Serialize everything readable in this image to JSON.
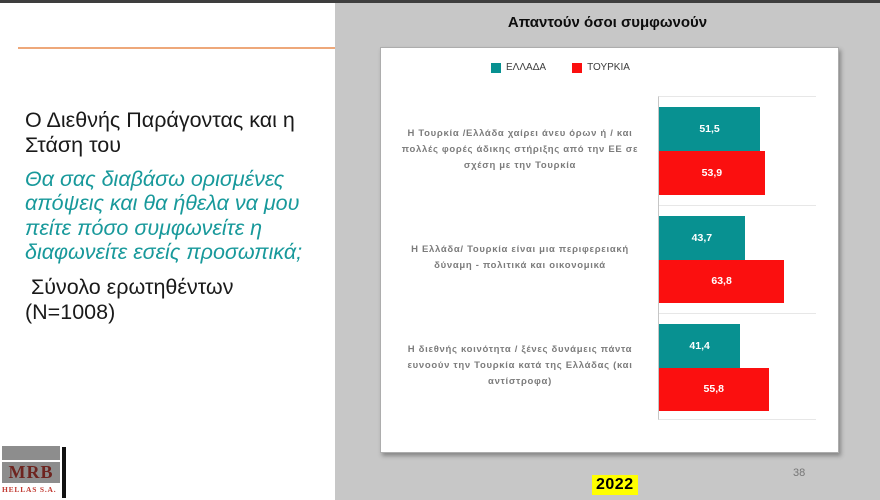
{
  "slide": {
    "left_panel": {
      "title": "Ο Διεθνής Παράγοντας και η Στάση του",
      "question": "Θα σας διαβάσω ορισμένες απόψεις και θα ήθελα να μου πείτε πόσο συμφωνείτε η διαφωνείτε εσείς προσωπικά;",
      "sample": " Σύνολο ερωτηθέντων (N=1008)"
    },
    "logo": {
      "name": "MRB",
      "sub": "HELLAS S.A."
    },
    "chart_header": "Απαντούν όσοι συμφωνούν",
    "footer": {
      "year": "2022",
      "page": "38"
    }
  },
  "chart_data": {
    "type": "bar",
    "orientation": "horizontal",
    "title": "Απαντούν όσοι συμφωνούν",
    "legend_position": "top",
    "grid": "row-separators",
    "xlim": [
      0,
      80
    ],
    "categories": [
      "Η  Τουρκία /Ελλάδα χαίρει άνευ όρων ή / και πολλές φορές άδικης στήριξης από την ΕΕ σε σχέση με την Τουρκία",
      "Η Ελλάδα/ Τουρκία είναι μια περιφερειακή δύναμη - πολιτικά και οικονομικά",
      "Η διεθνής κοινότητα / ξένες δυνάμεις πάντα ευνοούν την Τουρκία κατά της Ελλάδας (και αντίστροφα)"
    ],
    "series": [
      {
        "name": "ΕΛΛΑΔΑ",
        "color": "#089191",
        "values": [
          51.5,
          43.7,
          41.4
        ],
        "labels": [
          "51,5",
          "43,7",
          "41,4"
        ]
      },
      {
        "name": "ΤΟΥΡΚΙΑ",
        "color": "#fb0f0f",
        "values": [
          53.9,
          63.8,
          55.8
        ],
        "labels": [
          "53,9",
          "63,8",
          "55,8"
        ]
      }
    ]
  },
  "colors": {
    "greece_teal": "#089191",
    "turkey_red": "#fb0f0f",
    "slide_gray_bg": "#c7c7c7",
    "accent_orange": "#eea87a",
    "teal_text": "#18999b",
    "label_gray": "#7c7c7c",
    "year_highlight": "#ffff00"
  }
}
